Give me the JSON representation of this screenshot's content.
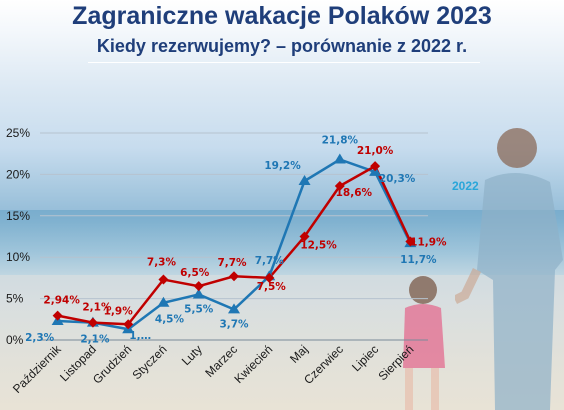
{
  "title": "Zagraniczne wakacje Polaków 2023",
  "subtitle": "Kiedy rezerwujemy? – porównanie z 2022 r.",
  "colors": {
    "series_2023": "#c00000",
    "series_2022": "#1f77b4",
    "legend_2022": "#2aa6d9",
    "title": "#1f3e7a"
  },
  "chart_data": {
    "type": "line",
    "categories": [
      "Październik",
      "Listopad",
      "Grudzień",
      "Styczeń",
      "Luty",
      "Marzec",
      "Kwiecień",
      "Maj",
      "Czerwiec",
      "Lipiec",
      "Sierpień"
    ],
    "y_ticks": [
      "0%",
      "5%",
      "10%",
      "15%",
      "20%",
      "25%"
    ],
    "ylim": [
      0,
      25
    ],
    "grid": true,
    "series": [
      {
        "name": "",
        "color": "#c00000",
        "marker": "diamond",
        "values": [
          2.94,
          2.1,
          1.9,
          7.3,
          6.5,
          7.7,
          7.5,
          12.5,
          18.6,
          21.0,
          11.9
        ],
        "labels": [
          "2,94%",
          "2,1%",
          "1,9%",
          "7,3%",
          "6,5%",
          "7,7%",
          "7,5%",
          "12,5%",
          "18,6%",
          "21,0%",
          "11,9%"
        ]
      },
      {
        "name": "2022",
        "color": "#1f77b4",
        "marker": "triangle",
        "values": [
          2.3,
          2.1,
          1.3,
          4.5,
          5.5,
          3.7,
          7.7,
          19.2,
          21.8,
          20.3,
          11.7
        ],
        "labels": [
          "2,3%",
          "2,1%",
          "1,…",
          "4,5%",
          "5,5%",
          "3,7%",
          "7,7%",
          "19,2%",
          "21,8%",
          "20,3%",
          "11,7%"
        ]
      }
    ]
  }
}
